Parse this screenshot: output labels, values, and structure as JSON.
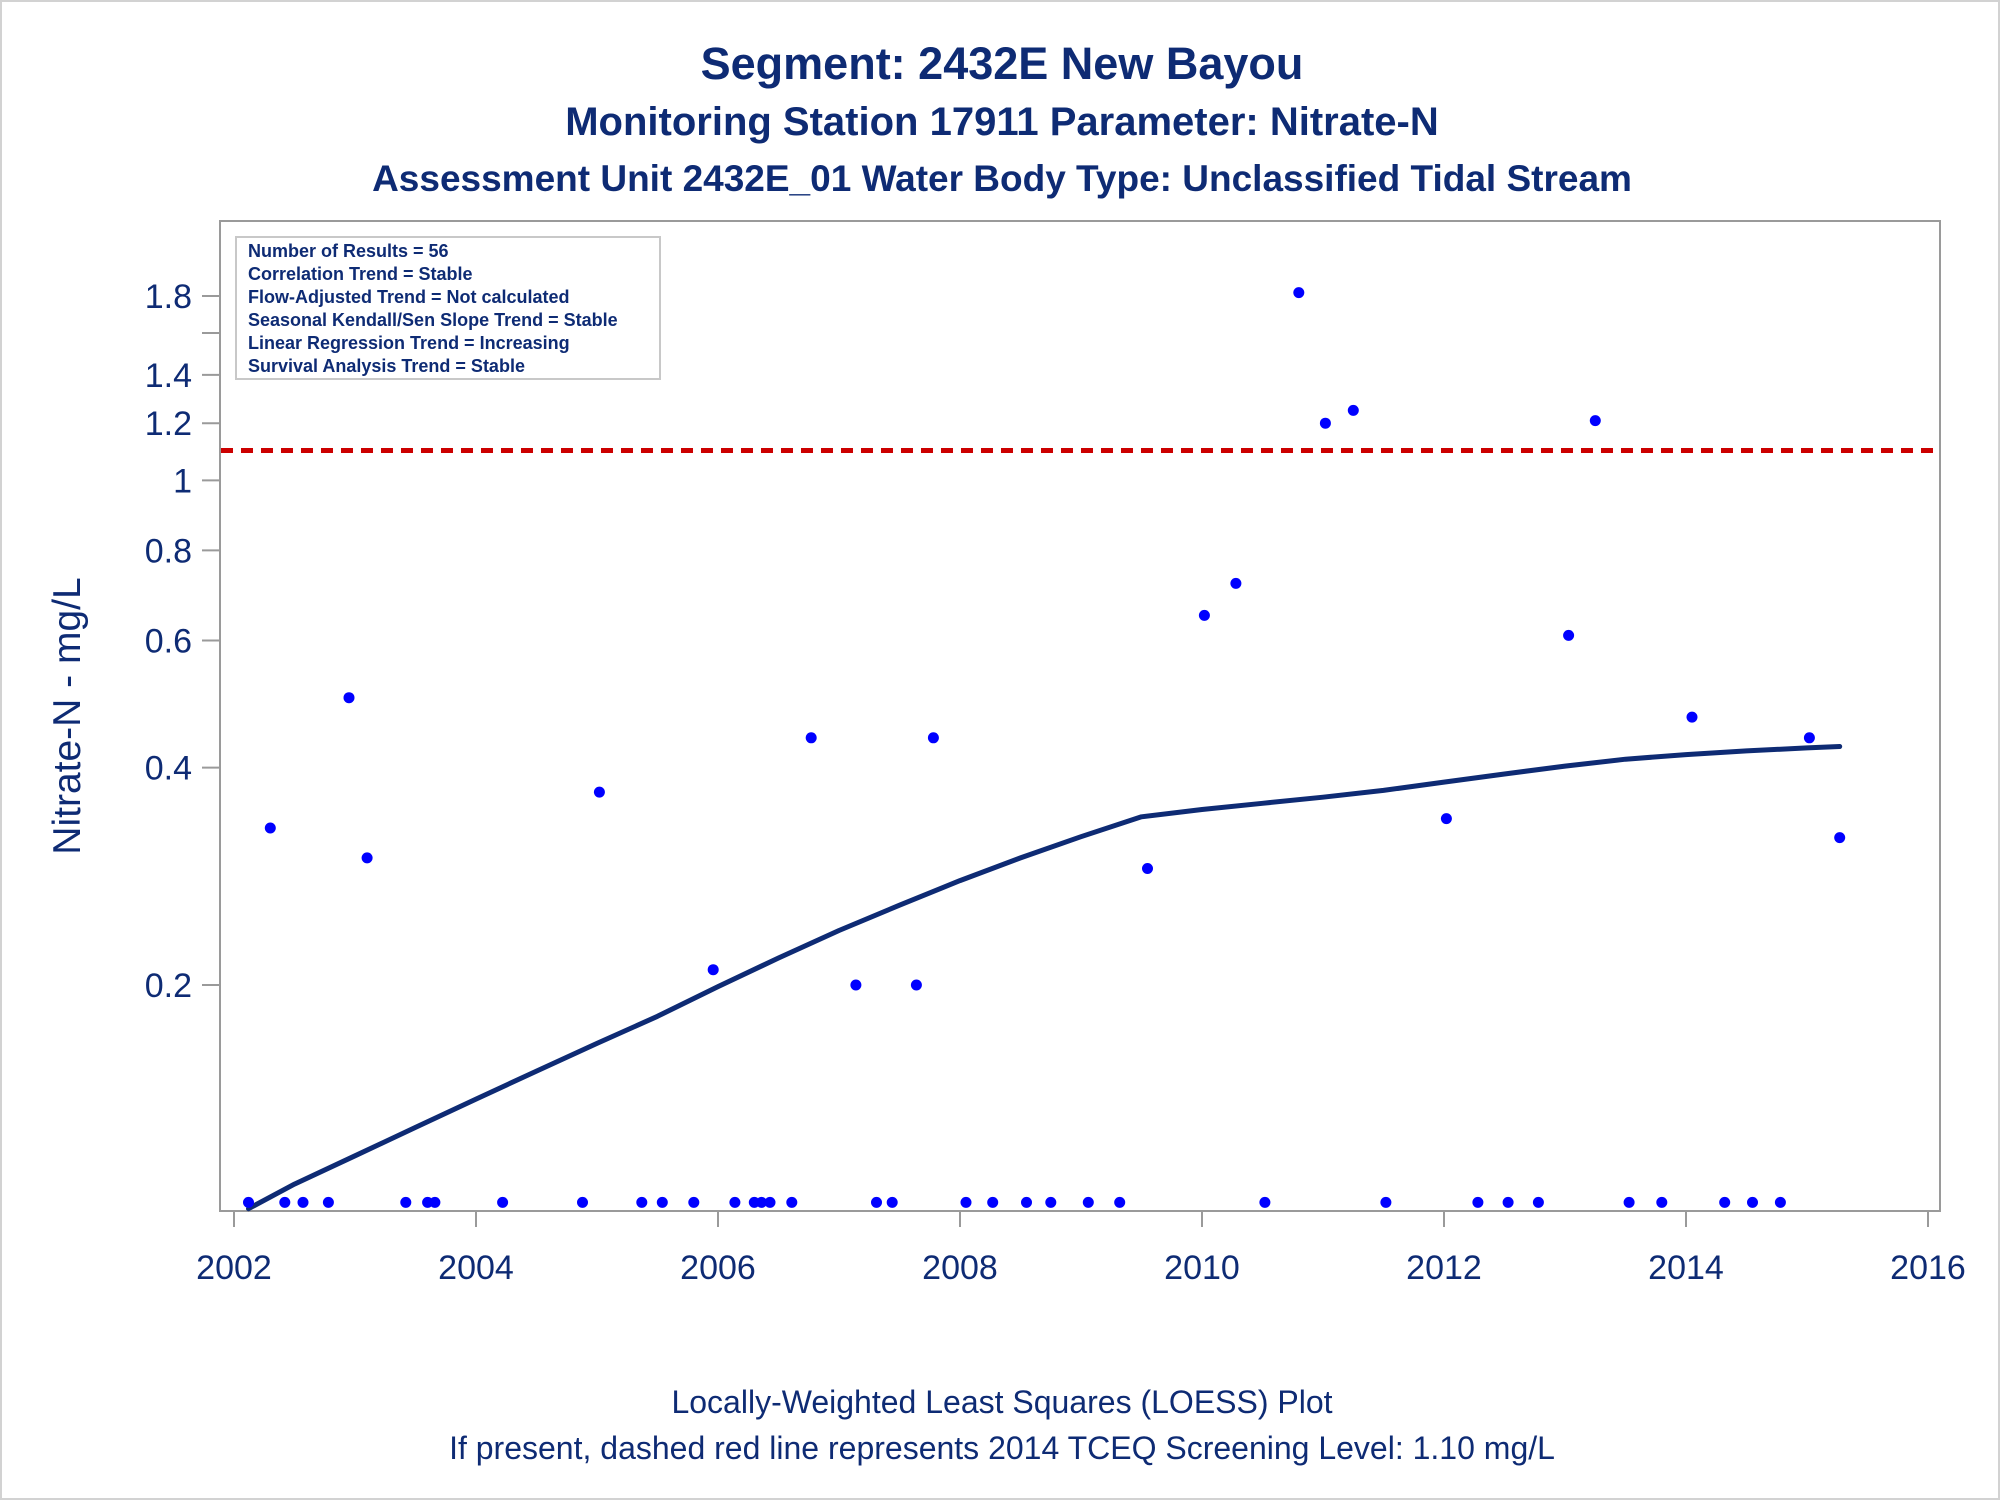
{
  "titles": {
    "line1": "Segment: 2432E  New Bayou",
    "line2": "Monitoring Station 17911 Parameter: Nitrate-N",
    "line3": "Assessment Unit 2432E_01   Water Body Type: Unclassified Tidal Stream"
  },
  "footer": {
    "line1": "Locally-Weighted Least Squares (LOESS) Plot",
    "line2": "If present, dashed red line represents 2014 TCEQ Screening Level: 1.10 mg/L"
  },
  "stats_box": [
    "Number of Results = 56",
    "Correlation Trend = Stable",
    "Flow-Adjusted Trend = Not calculated",
    "Seasonal Kendall/Sen Slope Trend = Stable",
    "Linear Regression Trend = Increasing",
    "Survival Analysis Trend = Stable"
  ],
  "colors": {
    "text": "#0e2b74",
    "points": "#0000ff",
    "loess": "#0e2b74",
    "screening_line": "#cc0000",
    "axis": "#9a9a9a"
  },
  "chart_data": {
    "type": "scatter",
    "ylabel": "Nitrate-N - mg/L",
    "xlabel": "",
    "y_scale": "log",
    "xlim": [
      2002,
      2016
    ],
    "ylim": [
      0.1,
      1.9
    ],
    "x_ticks": [
      2002,
      2004,
      2006,
      2008,
      2010,
      2012,
      2014,
      2016
    ],
    "y_ticks": [
      0.2,
      0.4,
      0.6,
      0.8,
      1,
      1.2,
      1.4,
      1.8
    ],
    "y_tick_labels": [
      "0.2",
      "0.4",
      "0.6",
      "0.8",
      "1",
      "1.2",
      "1.4",
      "1.8"
    ],
    "y_minor_ticks": [
      1.6
    ],
    "screening_level": 1.1,
    "points": [
      {
        "x": 2002.12,
        "y": 0.1
      },
      {
        "x": 2002.3,
        "y": 0.33
      },
      {
        "x": 2002.42,
        "y": 0.1
      },
      {
        "x": 2002.57,
        "y": 0.1
      },
      {
        "x": 2002.78,
        "y": 0.1
      },
      {
        "x": 2002.95,
        "y": 0.5
      },
      {
        "x": 2003.1,
        "y": 0.3
      },
      {
        "x": 2003.42,
        "y": 0.1
      },
      {
        "x": 2003.6,
        "y": 0.1
      },
      {
        "x": 2003.66,
        "y": 0.1
      },
      {
        "x": 2004.22,
        "y": 0.1
      },
      {
        "x": 2004.88,
        "y": 0.1
      },
      {
        "x": 2005.02,
        "y": 0.37
      },
      {
        "x": 2005.37,
        "y": 0.1
      },
      {
        "x": 2005.54,
        "y": 0.1
      },
      {
        "x": 2005.8,
        "y": 0.1
      },
      {
        "x": 2005.96,
        "y": 0.21
      },
      {
        "x": 2006.14,
        "y": 0.1
      },
      {
        "x": 2006.3,
        "y": 0.1
      },
      {
        "x": 2006.36,
        "y": 0.1
      },
      {
        "x": 2006.43,
        "y": 0.1
      },
      {
        "x": 2006.61,
        "y": 0.1
      },
      {
        "x": 2006.77,
        "y": 0.44
      },
      {
        "x": 2007.14,
        "y": 0.2
      },
      {
        "x": 2007.31,
        "y": 0.1
      },
      {
        "x": 2007.44,
        "y": 0.1
      },
      {
        "x": 2007.64,
        "y": 0.2
      },
      {
        "x": 2007.78,
        "y": 0.44
      },
      {
        "x": 2008.05,
        "y": 0.1
      },
      {
        "x": 2008.27,
        "y": 0.1
      },
      {
        "x": 2008.55,
        "y": 0.1
      },
      {
        "x": 2008.75,
        "y": 0.1
      },
      {
        "x": 2009.06,
        "y": 0.1
      },
      {
        "x": 2009.32,
        "y": 0.1
      },
      {
        "x": 2009.55,
        "y": 0.29
      },
      {
        "x": 2010.02,
        "y": 0.65
      },
      {
        "x": 2010.28,
        "y": 0.72
      },
      {
        "x": 2010.52,
        "y": 0.1
      },
      {
        "x": 2010.8,
        "y": 1.82
      },
      {
        "x": 2011.02,
        "y": 1.2
      },
      {
        "x": 2011.25,
        "y": 1.25
      },
      {
        "x": 2011.52,
        "y": 0.1
      },
      {
        "x": 2012.02,
        "y": 0.34
      },
      {
        "x": 2012.28,
        "y": 0.1
      },
      {
        "x": 2012.53,
        "y": 0.1
      },
      {
        "x": 2012.78,
        "y": 0.1
      },
      {
        "x": 2013.03,
        "y": 0.61
      },
      {
        "x": 2013.25,
        "y": 1.21
      },
      {
        "x": 2013.53,
        "y": 0.1
      },
      {
        "x": 2013.8,
        "y": 0.1
      },
      {
        "x": 2014.05,
        "y": 0.47
      },
      {
        "x": 2014.32,
        "y": 0.1
      },
      {
        "x": 2014.55,
        "y": 0.1
      },
      {
        "x": 2014.78,
        "y": 0.1
      },
      {
        "x": 2015.02,
        "y": 0.44
      },
      {
        "x": 2015.27,
        "y": 0.32
      }
    ],
    "loess": [
      {
        "x": 2002.12,
        "y": 0.098
      },
      {
        "x": 2002.5,
        "y": 0.106
      },
      {
        "x": 2003.0,
        "y": 0.116
      },
      {
        "x": 2003.5,
        "y": 0.127
      },
      {
        "x": 2004.0,
        "y": 0.139
      },
      {
        "x": 2004.5,
        "y": 0.152
      },
      {
        "x": 2005.0,
        "y": 0.166
      },
      {
        "x": 2005.5,
        "y": 0.181
      },
      {
        "x": 2006.0,
        "y": 0.199
      },
      {
        "x": 2006.5,
        "y": 0.218
      },
      {
        "x": 2007.0,
        "y": 0.238
      },
      {
        "x": 2007.5,
        "y": 0.258
      },
      {
        "x": 2008.0,
        "y": 0.279
      },
      {
        "x": 2008.5,
        "y": 0.3
      },
      {
        "x": 2009.0,
        "y": 0.321
      },
      {
        "x": 2009.5,
        "y": 0.342
      },
      {
        "x": 2010.0,
        "y": 0.35
      },
      {
        "x": 2010.5,
        "y": 0.357
      },
      {
        "x": 2011.0,
        "y": 0.364
      },
      {
        "x": 2011.5,
        "y": 0.372
      },
      {
        "x": 2012.0,
        "y": 0.382
      },
      {
        "x": 2012.5,
        "y": 0.392
      },
      {
        "x": 2013.0,
        "y": 0.402
      },
      {
        "x": 2013.5,
        "y": 0.411
      },
      {
        "x": 2014.0,
        "y": 0.417
      },
      {
        "x": 2014.5,
        "y": 0.422
      },
      {
        "x": 2015.0,
        "y": 0.426
      },
      {
        "x": 2015.27,
        "y": 0.428
      }
    ]
  }
}
